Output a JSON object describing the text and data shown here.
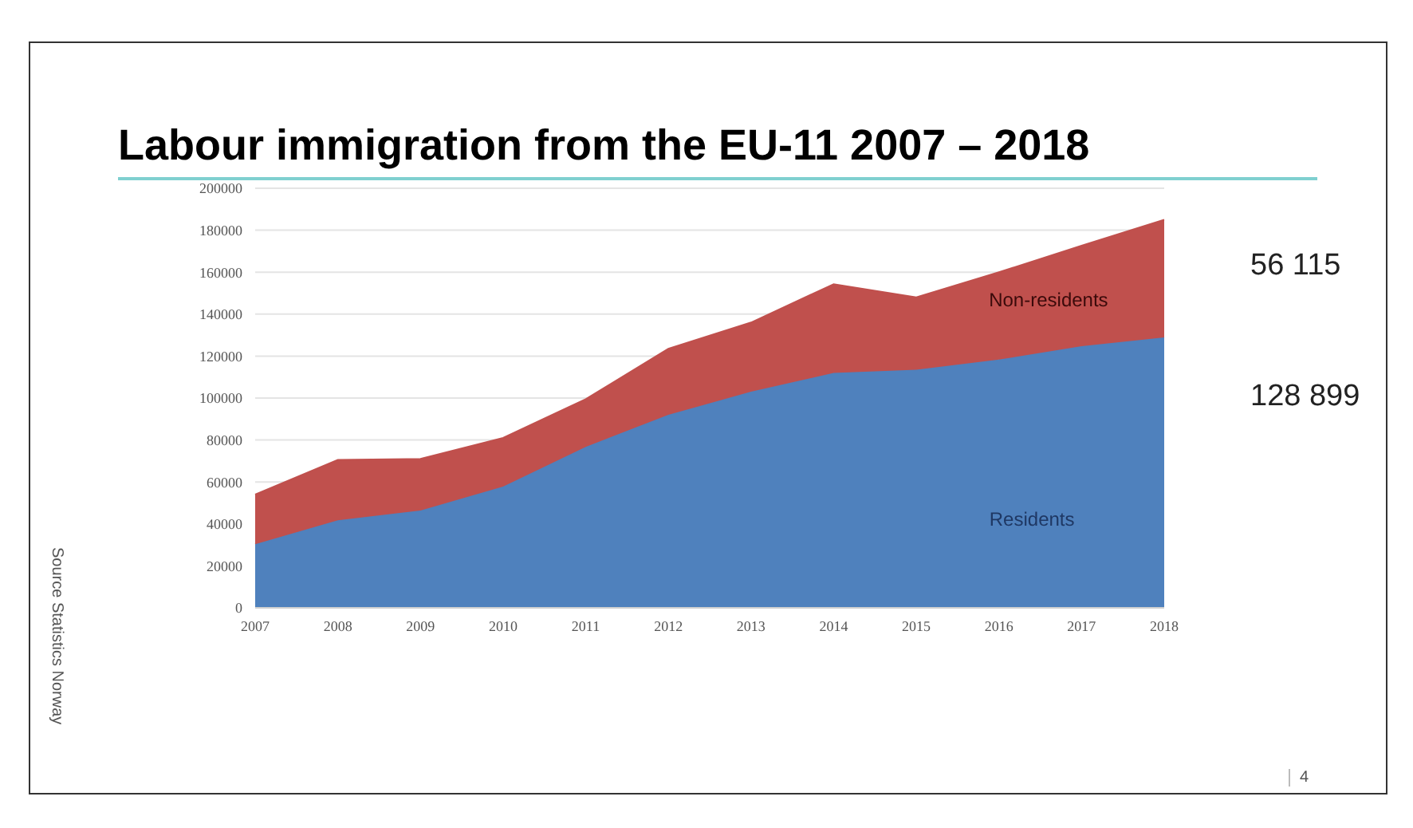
{
  "chart_data": {
    "type": "area",
    "title": "Labour immigration from the EU-11 2007 – 2018",
    "categories": [
      "2007",
      "2008",
      "2009",
      "2010",
      "2011",
      "2012",
      "2013",
      "2014",
      "2015",
      "2016",
      "2017",
      "2018"
    ],
    "series": [
      {
        "name": "Residents",
        "color": "#4f81bd",
        "values": [
          30300,
          41700,
          46400,
          57800,
          76700,
          92000,
          103000,
          112000,
          113500,
          118300,
          124700,
          128899
        ]
      },
      {
        "name": "Non-residents",
        "color": "#c0504d",
        "values": [
          23700,
          28800,
          24600,
          23200,
          22800,
          31500,
          33000,
          42300,
          34500,
          41700,
          47900,
          56115
        ]
      }
    ],
    "stacked": true,
    "ylim": [
      0,
      200000
    ],
    "yticks": [
      0,
      20000,
      40000,
      60000,
      80000,
      100000,
      120000,
      140000,
      160000,
      180000,
      200000
    ],
    "grid": "y",
    "legend": false,
    "annotations": [
      "56 115",
      "128 899",
      "Source Statistics Norway",
      "4"
    ]
  }
}
